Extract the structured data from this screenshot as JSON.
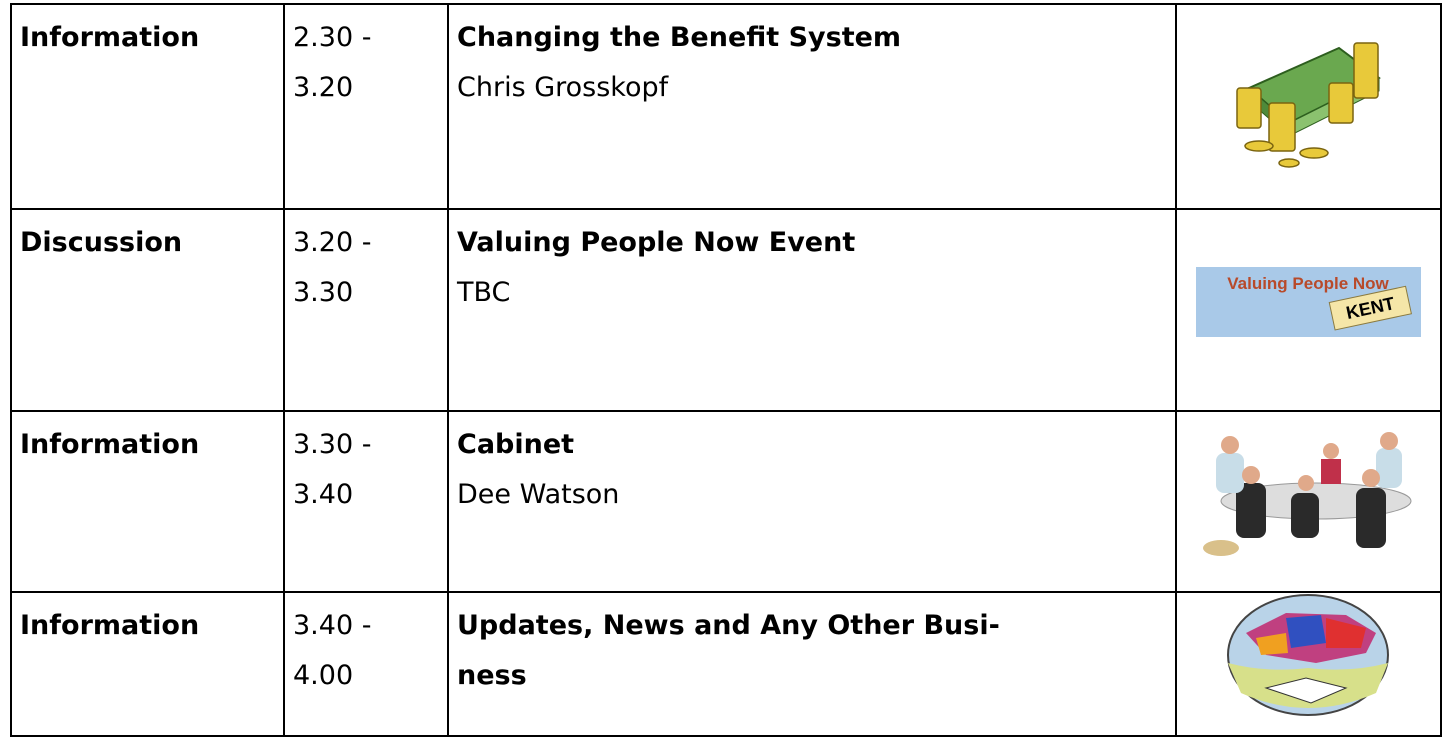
{
  "table": {
    "rows": [
      {
        "type": "Information",
        "time_start": "2.30 -",
        "time_end": "3.20",
        "title": "Changing the Benefit System",
        "presenter": "Chris Grosskopf"
      },
      {
        "type": "Discussion",
        "time_start": "3.20 -",
        "time_end": "3.30",
        "title": "Valuing People Now Event",
        "presenter": "TBC",
        "image_text": "Valuing People Now",
        "image_tag": "KENT"
      },
      {
        "type": "Information",
        "time_start": "3.30 -",
        "time_end": "3.40",
        "title": "Cabinet",
        "presenter": "Dee Watson"
      },
      {
        "type": "Information",
        "time_start": "3.40 -",
        "time_end": "4.00",
        "title": "Updates, News and Any Other Busi-ness"
      }
    ]
  }
}
